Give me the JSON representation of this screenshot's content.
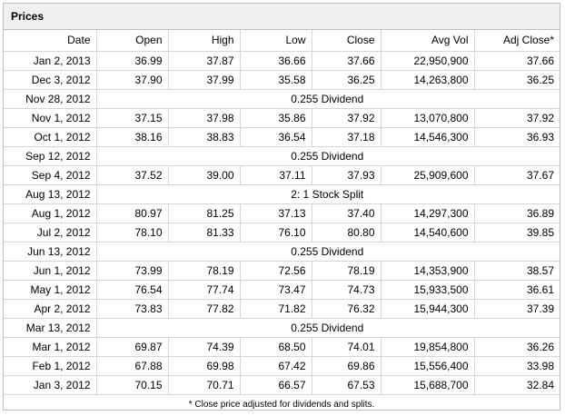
{
  "panel": {
    "title": "Prices"
  },
  "columns": [
    "Date",
    "Open",
    "High",
    "Low",
    "Close",
    "Avg Vol",
    "Adj Close*"
  ],
  "rows": [
    {
      "type": "price",
      "date": "Jan 2, 2013",
      "open": "36.99",
      "high": "37.87",
      "low": "36.66",
      "close": "37.66",
      "vol": "22,950,900",
      "adj": "37.66"
    },
    {
      "type": "price",
      "date": "Dec 3, 2012",
      "open": "37.90",
      "high": "37.99",
      "low": "35.58",
      "close": "36.25",
      "vol": "14,263,800",
      "adj": "36.25"
    },
    {
      "type": "event",
      "date": "Nov 28, 2012",
      "text": "0.255 Dividend"
    },
    {
      "type": "price",
      "date": "Nov 1, 2012",
      "open": "37.15",
      "high": "37.98",
      "low": "35.86",
      "close": "37.92",
      "vol": "13,070,800",
      "adj": "37.92"
    },
    {
      "type": "price",
      "date": "Oct 1, 2012",
      "open": "38.16",
      "high": "38.83",
      "low": "36.54",
      "close": "37.18",
      "vol": "14,546,300",
      "adj": "36.93"
    },
    {
      "type": "event",
      "date": "Sep 12, 2012",
      "text": "0.255 Dividend"
    },
    {
      "type": "price",
      "date": "Sep 4, 2012",
      "open": "37.52",
      "high": "39.00",
      "low": "37.11",
      "close": "37.93",
      "vol": "25,909,600",
      "adj": "37.67"
    },
    {
      "type": "event",
      "date": "Aug 13, 2012",
      "text": "2: 1 Stock Split"
    },
    {
      "type": "price",
      "date": "Aug 1, 2012",
      "open": "80.97",
      "high": "81.25",
      "low": "37.13",
      "close": "37.40",
      "vol": "14,297,300",
      "adj": "36.89"
    },
    {
      "type": "price",
      "date": "Jul 2, 2012",
      "open": "78.10",
      "high": "81.33",
      "low": "76.10",
      "close": "80.80",
      "vol": "14,540,600",
      "adj": "39.85"
    },
    {
      "type": "event",
      "date": "Jun 13, 2012",
      "text": "0.255 Dividend"
    },
    {
      "type": "price",
      "date": "Jun 1, 2012",
      "open": "73.99",
      "high": "78.19",
      "low": "72.56",
      "close": "78.19",
      "vol": "14,353,900",
      "adj": "38.57"
    },
    {
      "type": "price",
      "date": "May 1, 2012",
      "open": "76.54",
      "high": "77.74",
      "low": "73.47",
      "close": "74.73",
      "vol": "15,933,500",
      "adj": "36.61"
    },
    {
      "type": "price",
      "date": "Apr 2, 2012",
      "open": "73.83",
      "high": "77.82",
      "low": "71.82",
      "close": "76.32",
      "vol": "15,944,300",
      "adj": "37.39"
    },
    {
      "type": "event",
      "date": "Mar 13, 2012",
      "text": "0.255 Dividend"
    },
    {
      "type": "price",
      "date": "Mar 1, 2012",
      "open": "69.87",
      "high": "74.39",
      "low": "68.50",
      "close": "74.01",
      "vol": "19,854,800",
      "adj": "36.26"
    },
    {
      "type": "price",
      "date": "Feb 1, 2012",
      "open": "67.88",
      "high": "69.98",
      "low": "67.42",
      "close": "69.86",
      "vol": "15,556,400",
      "adj": "33.98"
    },
    {
      "type": "price",
      "date": "Jan 3, 2012",
      "open": "70.15",
      "high": "70.71",
      "low": "66.57",
      "close": "67.53",
      "vol": "15,688,700",
      "adj": "32.84"
    }
  ],
  "footnote": "* Close price adjusted for dividends and splits."
}
